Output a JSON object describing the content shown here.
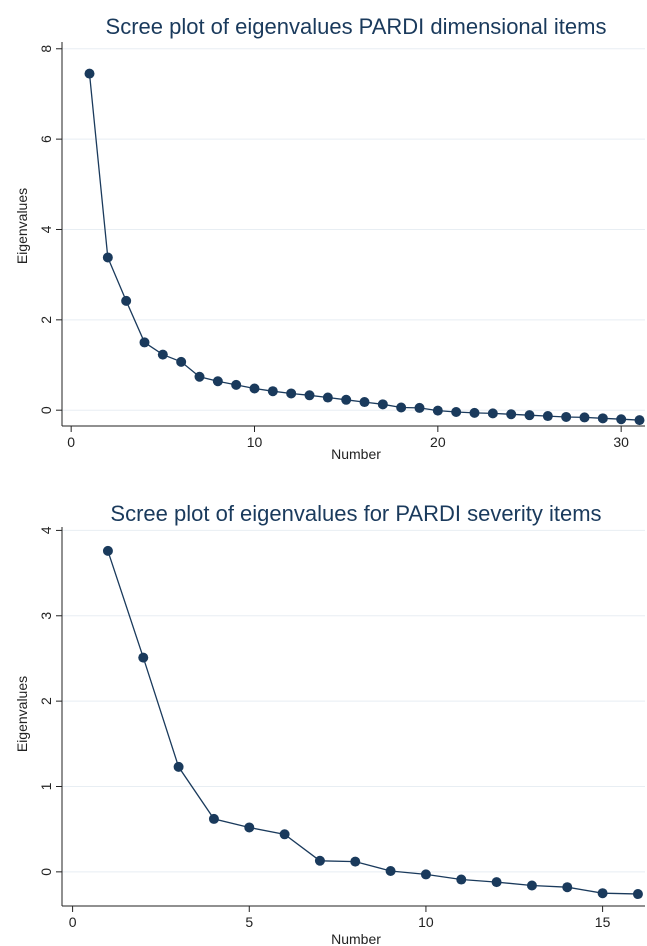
{
  "chart_data": [
    {
      "type": "line",
      "title": "Scree plot of eigenvalues PARDI dimensional items",
      "xlabel": "Number",
      "ylabel": "Eigenvalues",
      "xlim": [
        -0.5,
        31.3
      ],
      "ylim": [
        -0.35,
        8.15
      ],
      "xticks": [
        0,
        10,
        20,
        30
      ],
      "yticks": [
        0,
        2,
        4,
        6,
        8
      ],
      "grid": true,
      "markers": true,
      "color": "#1a3a5c",
      "x": [
        1,
        2,
        3,
        4,
        5,
        6,
        7,
        8,
        9,
        10,
        11,
        12,
        13,
        14,
        15,
        16,
        17,
        18,
        19,
        20,
        21,
        22,
        23,
        24,
        25,
        26,
        27,
        28,
        29,
        30,
        31
      ],
      "values": [
        7.45,
        3.38,
        2.42,
        1.5,
        1.23,
        1.07,
        0.74,
        0.64,
        0.56,
        0.48,
        0.42,
        0.37,
        0.33,
        0.28,
        0.23,
        0.18,
        0.13,
        0.06,
        0.05,
        -0.01,
        -0.04,
        -0.06,
        -0.07,
        -0.09,
        -0.11,
        -0.13,
        -0.15,
        -0.16,
        -0.18,
        -0.2,
        -0.22
      ]
    },
    {
      "type": "line",
      "title": "Scree plot of eigenvalues for PARDI severity items",
      "xlabel": "Number",
      "ylabel": "Eigenvalues",
      "xlim": [
        -0.3,
        16.2
      ],
      "ylim": [
        -0.4,
        4.04
      ],
      "xticks": [
        0,
        5,
        10,
        15
      ],
      "yticks": [
        0,
        1,
        2,
        3,
        4
      ],
      "grid": true,
      "markers": true,
      "color": "#1a3a5c",
      "x": [
        1,
        2,
        3,
        4,
        5,
        6,
        7,
        8,
        9,
        10,
        11,
        12,
        13,
        14,
        15,
        16
      ],
      "values": [
        3.76,
        2.51,
        1.23,
        0.62,
        0.52,
        0.44,
        0.13,
        0.12,
        0.01,
        -0.03,
        -0.09,
        -0.12,
        -0.16,
        -0.18,
        -0.25,
        -0.26
      ]
    }
  ]
}
